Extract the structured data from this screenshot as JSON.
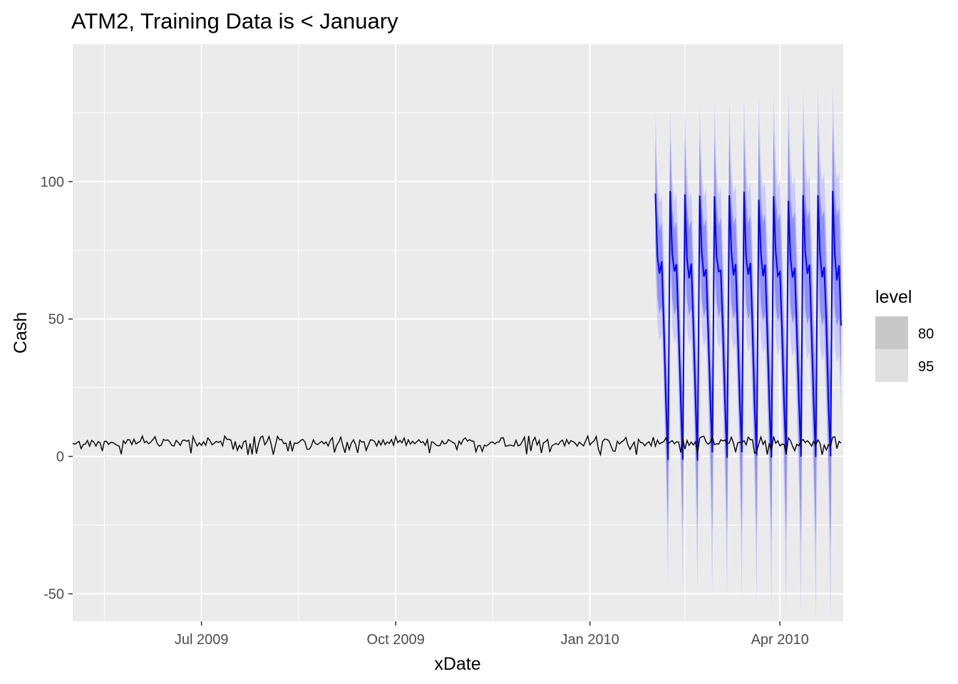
{
  "chart_data": {
    "type": "line",
    "title": "ATM2, Training Data is < January",
    "xlabel": "xDate",
    "ylabel": "Cash",
    "x_range": [
      "2009-05-01",
      "2010-05-01"
    ],
    "ylim": [
      -60,
      150
    ],
    "grid": true,
    "x_ticks": [
      {
        "date": "2009-07-01",
        "label": "Jul 2009"
      },
      {
        "date": "2009-10-01",
        "label": "Oct 2009"
      },
      {
        "date": "2010-01-01",
        "label": "Jan 2010"
      },
      {
        "date": "2010-04-01",
        "label": "Apr 2010"
      }
    ],
    "y_ticks": [
      {
        "value": 100,
        "label": "100"
      },
      {
        "value": 50,
        "label": "50"
      },
      {
        "value": 0,
        "label": "0"
      },
      {
        "value": -50,
        "label": "-50"
      }
    ],
    "actual_series": {
      "name": "",
      "color": "#000000",
      "start_date": "2009-05-01",
      "end_date": "2010-04-30",
      "approx_level": 5,
      "approx_range": [
        0.5,
        7.5
      ]
    },
    "forecast": {
      "color": "#0000ff",
      "start_date": "2010-02-01",
      "end_date": "2010-04-30",
      "weekly_pattern": [
        {
          "day": 0,
          "mean": 95,
          "lo80": 78,
          "hi80": 115,
          "lo95": 68,
          "hi95": 125
        },
        {
          "day": 1,
          "mean": 73,
          "lo80": 58,
          "hi80": 90,
          "lo95": 48,
          "hi95": 100
        },
        {
          "day": 2,
          "mean": 66,
          "lo80": 52,
          "hi80": 82,
          "lo95": 42,
          "hi95": 92
        },
        {
          "day": 3,
          "mean": 69,
          "lo80": 55,
          "hi80": 85,
          "lo95": 45,
          "hi95": 95
        },
        {
          "day": 4,
          "mean": 47,
          "lo80": 33,
          "hi80": 63,
          "lo95": 23,
          "hi95": 73
        },
        {
          "day": 5,
          "mean": 20,
          "lo80": 5,
          "hi80": 36,
          "lo95": -5,
          "hi95": 46
        },
        {
          "day": 6,
          "mean": 0,
          "lo80": -25,
          "hi80": 20,
          "lo95": -45,
          "hi95": 30
        }
      ]
    },
    "legend": {
      "title": "level",
      "position": "right",
      "entries": [
        {
          "label": "80",
          "color": "#c8c8c8"
        },
        {
          "label": "95",
          "color": "#e0e0e0"
        }
      ]
    },
    "colors": {
      "panel_bg": "#ebebeb",
      "grid": "#ffffff",
      "band80": "#6060ff",
      "band95": "#b0b0ff"
    }
  }
}
